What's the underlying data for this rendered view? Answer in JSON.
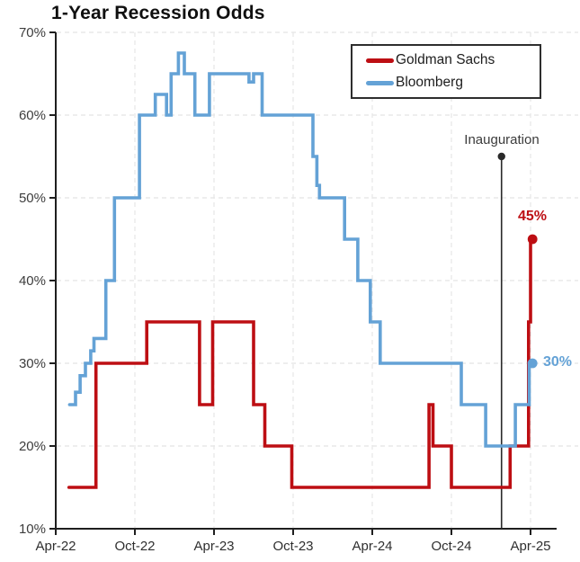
{
  "chart_data": {
    "type": "line",
    "step_style": "step-after",
    "title": "1-Year Recession Odds",
    "x_unit": "months since Apr-2022",
    "x_axis": {
      "tick_labels": [
        "Apr-22",
        "Oct-22",
        "Apr-23",
        "Oct-23",
        "Apr-24",
        "Oct-24",
        "Apr-25"
      ],
      "tick_months": [
        0,
        6,
        12,
        18,
        24,
        30,
        36
      ]
    },
    "y_axis": {
      "min": 10,
      "max": 70,
      "tick_values": [
        10,
        20,
        30,
        40,
        50,
        60,
        70
      ],
      "tick_labels": [
        "10%",
        "20%",
        "30%",
        "40%",
        "50%",
        "60%",
        "70%"
      ]
    },
    "grid": "dashed both axes",
    "legend_position": "top-right",
    "series": [
      {
        "name": "Goldman Sachs",
        "color": "#bd0e13",
        "end_label": "45%",
        "end_value": 45,
        "points": [
          [
            1.0,
            15
          ],
          [
            3.05,
            30
          ],
          [
            6.9,
            35
          ],
          [
            10.9,
            25
          ],
          [
            11.9,
            35
          ],
          [
            15.0,
            25
          ],
          [
            15.85,
            20
          ],
          [
            17.9,
            15
          ],
          [
            28.3,
            25
          ],
          [
            28.6,
            20
          ],
          [
            30.0,
            15
          ],
          [
            34.45,
            20
          ],
          [
            35.85,
            35
          ],
          [
            36.0,
            45
          ],
          [
            36.15,
            45
          ]
        ]
      },
      {
        "name": "Bloomberg",
        "color": "#64a2d6",
        "end_label": "30%",
        "end_value": 30,
        "points": [
          [
            1.05,
            25
          ],
          [
            1.5,
            26.5
          ],
          [
            1.85,
            28.5
          ],
          [
            2.25,
            30
          ],
          [
            2.65,
            31.5
          ],
          [
            2.9,
            33
          ],
          [
            3.8,
            40
          ],
          [
            4.45,
            50
          ],
          [
            6.35,
            60
          ],
          [
            7.55,
            62.5
          ],
          [
            8.4,
            60
          ],
          [
            8.75,
            65
          ],
          [
            9.3,
            67.5
          ],
          [
            9.75,
            65
          ],
          [
            10.55,
            60
          ],
          [
            11.65,
            65
          ],
          [
            14.65,
            64
          ],
          [
            15.0,
            65
          ],
          [
            15.65,
            60
          ],
          [
            19.5,
            55
          ],
          [
            19.8,
            51.5
          ],
          [
            20.0,
            50
          ],
          [
            21.9,
            45
          ],
          [
            22.9,
            40
          ],
          [
            23.85,
            35
          ],
          [
            24.6,
            30
          ],
          [
            30.75,
            25
          ],
          [
            32.6,
            20
          ],
          [
            34.85,
            25
          ],
          [
            35.9,
            30
          ],
          [
            36.15,
            30
          ]
        ]
      }
    ],
    "annotation": {
      "label": "Inauguration",
      "x_month": 33.8,
      "line_top_value": 55,
      "line_bottom_value": 10,
      "color": "#2a2a2a"
    }
  }
}
